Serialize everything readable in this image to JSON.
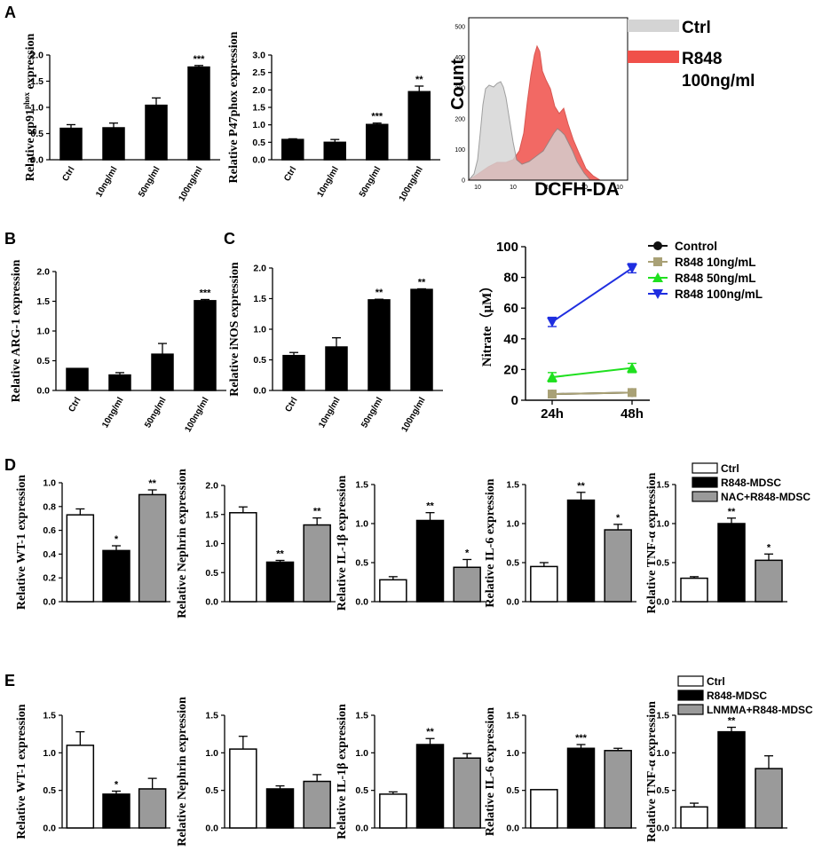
{
  "chart_data": [
    {
      "id": "A1",
      "panel_letter": "A",
      "type": "bar",
      "ylabel": "Relative gp91phox expression",
      "ylabel_parts": [
        "Relative gp91",
        "phox",
        " expression"
      ],
      "ylim": [
        0,
        2.0
      ],
      "yticks": [
        "0.0",
        "0.5",
        "1.0",
        "1.5",
        "2.0"
      ],
      "categories": [
        "Ctrl",
        "10ng/ml",
        "50ng/ml",
        "100ng/ml"
      ],
      "values": [
        0.6,
        0.61,
        1.04,
        1.77
      ],
      "errors": [
        0.07,
        0.09,
        0.14,
        0.03
      ],
      "significance": [
        "",
        "",
        "",
        "***"
      ]
    },
    {
      "id": "A2",
      "type": "bar",
      "ylabel": "Relative P47phox expression",
      "ylim": [
        0,
        3.0
      ],
      "yticks": [
        "0.0",
        "0.5",
        "1.0",
        "1.5",
        "2.0",
        "2.5",
        "3.0"
      ],
      "categories": [
        "Ctrl",
        "10ng/ml",
        "50ng/ml",
        "100ng/ml"
      ],
      "values": [
        0.58,
        0.5,
        1.01,
        1.95
      ],
      "errors": [
        0.02,
        0.08,
        0.04,
        0.16
      ],
      "significance": [
        "",
        "",
        "***",
        "**"
      ]
    },
    {
      "id": "A3",
      "type": "histogram",
      "ylabel": "Count",
      "xlabel": "DCFH-DA",
      "yticks": [
        "0",
        "100",
        "200",
        "300",
        "400",
        "500"
      ],
      "xticks": [
        "10",
        "10",
        "10",
        "10",
        "10"
      ],
      "legend": [
        {
          "name": "Ctrl",
          "color": "#d4d4d4"
        },
        {
          "name": "R848\n100ng/ml",
          "color": "#f0504a"
        }
      ]
    },
    {
      "id": "B",
      "panel_letter": "B",
      "type": "bar",
      "ylabel": "Relative ARG-1 expression",
      "ylim": [
        0,
        2.0
      ],
      "yticks": [
        "0.0",
        "0.5",
        "1.0",
        "1.5",
        "2.0"
      ],
      "categories": [
        "Ctrl",
        "10ng/ml",
        "50ng/ml",
        "100ng/ml"
      ],
      "values": [
        0.37,
        0.26,
        0.61,
        1.51
      ],
      "errors": [
        0.0,
        0.04,
        0.18,
        0.02
      ],
      "significance": [
        "",
        "",
        "",
        "***"
      ]
    },
    {
      "id": "C1",
      "panel_letter": "C",
      "type": "bar",
      "ylabel": "Relative iNOS expression",
      "ylim": [
        0,
        2.0
      ],
      "yticks": [
        "0.0",
        "0.5",
        "1.0",
        "1.5",
        "2.0"
      ],
      "categories": [
        "Ctrl",
        "10ng/ml",
        "50ng/ml",
        "100ng/ml"
      ],
      "values": [
        0.57,
        0.71,
        1.48,
        1.65
      ],
      "errors": [
        0.05,
        0.15,
        0.01,
        0.01
      ],
      "significance": [
        "",
        "",
        "**",
        "**"
      ]
    },
    {
      "id": "C2",
      "type": "line",
      "ylabel": "Nitrate（μM）",
      "ylim": [
        0,
        100
      ],
      "yticks": [
        "0",
        "20",
        "40",
        "60",
        "80",
        "100"
      ],
      "x": [
        "24h",
        "48h"
      ],
      "series": [
        {
          "name": "Control",
          "values": [
            4,
            5
          ],
          "errors": [
            0.5,
            0.5
          ],
          "color": "#111111",
          "marker": "circle"
        },
        {
          "name": "R848 10ng/mL",
          "values": [
            4,
            5
          ],
          "errors": [
            0.5,
            0.5
          ],
          "color": "#a9a176",
          "marker": "square"
        },
        {
          "name": "R848 50ng/mL",
          "values": [
            15,
            21
          ],
          "errors": [
            3,
            3
          ],
          "color": "#1fe01f",
          "marker": "triangle-up"
        },
        {
          "name": "R848 100ng/mL",
          "values": [
            51,
            86
          ],
          "errors": [
            3,
            3
          ],
          "color": "#1f2ee0",
          "marker": "triangle-down"
        }
      ]
    },
    {
      "id": "D1",
      "panel_letter": "D",
      "type": "bar",
      "ylabel": "Relative WT-1 expression",
      "ylim": [
        0,
        1.0
      ],
      "yticks": [
        "0.0",
        "0.2",
        "0.4",
        "0.6",
        "0.8",
        "1.0"
      ],
      "categories": [
        "Ctrl",
        "R848-MDSC",
        "NAC+R848-MDSC"
      ],
      "values": [
        0.73,
        0.43,
        0.9
      ],
      "errors": [
        0.05,
        0.04,
        0.04
      ],
      "significance": [
        "",
        "*",
        "**"
      ]
    },
    {
      "id": "D2",
      "type": "bar",
      "ylabel": "Relative Nephrin expression",
      "ylim": [
        0,
        2.0
      ],
      "yticks": [
        "0.0",
        "0.5",
        "1.0",
        "1.5",
        "2.0"
      ],
      "categories": [
        "Ctrl",
        "R848-MDSC",
        "NAC+R848-MDSC"
      ],
      "values": [
        1.53,
        0.68,
        1.32
      ],
      "errors": [
        0.1,
        0.03,
        0.12
      ],
      "significance": [
        "",
        "**",
        "**"
      ]
    },
    {
      "id": "D3",
      "type": "bar",
      "ylabel": "Relative IL-1β  expression",
      "ylim": [
        0,
        1.5
      ],
      "yticks": [
        "0.0",
        "0.5",
        "1.0",
        "1.5"
      ],
      "categories": [
        "Ctrl",
        "R848-MDSC",
        "NAC+R848-MDSC"
      ],
      "values": [
        0.28,
        1.04,
        0.44
      ],
      "errors": [
        0.04,
        0.1,
        0.1
      ],
      "significance": [
        "",
        "**",
        "*"
      ]
    },
    {
      "id": "D4",
      "type": "bar",
      "ylabel": "Relative IL-6 expression",
      "ylim": [
        0,
        1.5
      ],
      "yticks": [
        "0.0",
        "0.5",
        "1.0",
        "1.5"
      ],
      "categories": [
        "Ctrl",
        "R848-MDSC",
        "NAC+R848-MDSC"
      ],
      "values": [
        0.45,
        1.3,
        0.92
      ],
      "errors": [
        0.05,
        0.1,
        0.07
      ],
      "significance": [
        "",
        "**",
        "*"
      ]
    },
    {
      "id": "D5",
      "type": "bar",
      "ylabel": "Relative TNF-α  expression",
      "ylim": [
        0,
        1.5
      ],
      "yticks": [
        "0.0",
        "0.5",
        "1.0",
        "1.5"
      ],
      "categories": [
        "Ctrl",
        "R848-MDSC",
        "NAC+R848-MDSC"
      ],
      "values": [
        0.3,
        1.0,
        0.53
      ],
      "errors": [
        0.02,
        0.07,
        0.08
      ],
      "significance": [
        "",
        "**",
        "*"
      ],
      "legend": [
        "Ctrl",
        "R848-MDSC",
        "NAC+R848-MDSC"
      ]
    },
    {
      "id": "E1",
      "panel_letter": "E",
      "type": "bar",
      "ylabel": "Relative WT-1 expression",
      "ylim": [
        0,
        1.5
      ],
      "yticks": [
        "0.0",
        "0.5",
        "1.0",
        "1.5"
      ],
      "categories": [
        "Ctrl",
        "R848-MDSC",
        "LNMMA+R848-MDSC"
      ],
      "values": [
        1.1,
        0.45,
        0.52
      ],
      "errors": [
        0.18,
        0.04,
        0.14
      ],
      "significance": [
        "",
        "*",
        ""
      ]
    },
    {
      "id": "E2",
      "type": "bar",
      "ylabel": "Relative Nephrin expression",
      "ylim": [
        0,
        1.5
      ],
      "yticks": [
        "0.0",
        "0.5",
        "1.0",
        "1.5"
      ],
      "categories": [
        "Ctrl",
        "R848-MDSC",
        "LNMMA+R848-MDSC"
      ],
      "values": [
        1.05,
        0.52,
        0.62
      ],
      "errors": [
        0.17,
        0.04,
        0.09
      ],
      "significance": [
        "",
        "",
        ""
      ]
    },
    {
      "id": "E3",
      "type": "bar",
      "ylabel": "Relative IL-1β  expression",
      "ylim": [
        0,
        1.5
      ],
      "yticks": [
        "0.0",
        "0.5",
        "1.0",
        "1.5"
      ],
      "categories": [
        "Ctrl",
        "R848-MDSC",
        "LNMMA+R848-MDSC"
      ],
      "values": [
        0.45,
        1.11,
        0.93
      ],
      "errors": [
        0.03,
        0.08,
        0.06
      ],
      "significance": [
        "",
        "**",
        ""
      ]
    },
    {
      "id": "E4",
      "type": "bar",
      "ylabel": "Relative IL-6 expression",
      "ylim": [
        0,
        1.5
      ],
      "yticks": [
        "0.0",
        "0.5",
        "1.0",
        "1.5"
      ],
      "categories": [
        "Ctrl",
        "R848-MDSC",
        "LNMMA+R848-MDSC"
      ],
      "values": [
        0.51,
        1.06,
        1.03
      ],
      "errors": [
        0.0,
        0.05,
        0.03
      ],
      "significance": [
        "",
        "***",
        ""
      ]
    },
    {
      "id": "E5",
      "type": "bar",
      "ylabel": "Relative TNF-α  expression",
      "ylim": [
        0,
        1.5
      ],
      "yticks": [
        "0.0",
        "0.5",
        "1.0",
        "1.5"
      ],
      "categories": [
        "Ctrl",
        "R848-MDSC",
        "LNMMA+R848-MDSC"
      ],
      "values": [
        0.28,
        1.28,
        0.79
      ],
      "errors": [
        0.05,
        0.06,
        0.17
      ],
      "significance": [
        "",
        "**",
        ""
      ],
      "legend": [
        "Ctrl",
        "R848-MDSC",
        "LNMMA+R848-MDSC"
      ]
    }
  ]
}
